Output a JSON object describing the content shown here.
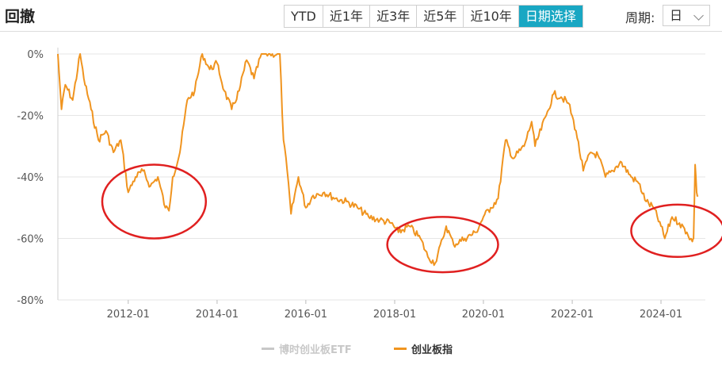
{
  "header": {
    "title": "回撤"
  },
  "range_buttons": [
    {
      "label": "YTD",
      "active": false
    },
    {
      "label": "近1年",
      "active": false
    },
    {
      "label": "近3年",
      "active": false
    },
    {
      "label": "近5年",
      "active": false
    },
    {
      "label": "近10年",
      "active": false
    },
    {
      "label": "日期选择",
      "active": true
    }
  ],
  "period": {
    "label": "周期:",
    "value": "日"
  },
  "colors": {
    "accent": "#19a7c3",
    "series_main": "#f0941f",
    "series_etf": "#c8c8c8",
    "highlight_circle": "#e02020"
  },
  "chart_data": {
    "type": "line",
    "xlabel": "",
    "ylabel": "",
    "x_ticks": [
      "2012-01",
      "2014-01",
      "2016-01",
      "2018-01",
      "2020-01",
      "2022-01",
      "2024-01"
    ],
    "y_ticks": [
      "0%",
      "-20%",
      "-40%",
      "-60%",
      "-80%"
    ],
    "ylim": [
      -80,
      0
    ],
    "xlim": [
      "2010-06-01",
      "2024-12-31"
    ],
    "grid": true,
    "legend_position": "bottom",
    "series": [
      {
        "name": "创业板指",
        "color": "#f0941f",
        "points": [
          [
            "2010-06-01",
            0
          ],
          [
            "2010-07-01",
            -18
          ],
          [
            "2010-08-01",
            -10
          ],
          [
            "2010-10-01",
            -15
          ],
          [
            "2010-12-01",
            0
          ],
          [
            "2011-01-01",
            -8
          ],
          [
            "2011-03-01",
            -18
          ],
          [
            "2011-05-01",
            -28
          ],
          [
            "2011-07-01",
            -25
          ],
          [
            "2011-09-01",
            -32
          ],
          [
            "2011-11-01",
            -28
          ],
          [
            "2012-01-01",
            -45
          ],
          [
            "2012-03-01",
            -40
          ],
          [
            "2012-05-01",
            -38
          ],
          [
            "2012-07-01",
            -43
          ],
          [
            "2012-09-01",
            -40
          ],
          [
            "2012-11-01",
            -50
          ],
          [
            "2012-12-01",
            -51
          ],
          [
            "2013-01-01",
            -40
          ],
          [
            "2013-03-01",
            -32
          ],
          [
            "2013-05-01",
            -15
          ],
          [
            "2013-07-01",
            -12
          ],
          [
            "2013-09-01",
            0
          ],
          [
            "2013-11-01",
            -5
          ],
          [
            "2014-01-01",
            -3
          ],
          [
            "2014-03-01",
            -12
          ],
          [
            "2014-05-01",
            -18
          ],
          [
            "2014-07-01",
            -12
          ],
          [
            "2014-09-01",
            -2
          ],
          [
            "2014-11-01",
            -8
          ],
          [
            "2015-01-01",
            0
          ],
          [
            "2015-03-01",
            0
          ],
          [
            "2015-06-01",
            0
          ],
          [
            "2015-07-01",
            -28
          ],
          [
            "2015-08-01",
            -38
          ],
          [
            "2015-09-01",
            -52
          ],
          [
            "2015-11-01",
            -40
          ],
          [
            "2016-01-01",
            -50
          ],
          [
            "2016-03-01",
            -46
          ],
          [
            "2016-06-01",
            -45
          ],
          [
            "2016-09-01",
            -47
          ],
          [
            "2016-12-01",
            -48
          ],
          [
            "2017-03-01",
            -50
          ],
          [
            "2017-06-01",
            -53
          ],
          [
            "2017-09-01",
            -54
          ],
          [
            "2017-12-01",
            -55
          ],
          [
            "2018-02-01",
            -58
          ],
          [
            "2018-05-01",
            -56
          ],
          [
            "2018-08-01",
            -60
          ],
          [
            "2018-10-01",
            -66
          ],
          [
            "2018-12-01",
            -68
          ],
          [
            "2019-02-01",
            -60
          ],
          [
            "2019-03-01",
            -56
          ],
          [
            "2019-05-01",
            -62
          ],
          [
            "2019-08-01",
            -60
          ],
          [
            "2019-11-01",
            -58
          ],
          [
            "2020-01-01",
            -53
          ],
          [
            "2020-03-01",
            -50
          ],
          [
            "2020-05-01",
            -47
          ],
          [
            "2020-07-01",
            -28
          ],
          [
            "2020-09-01",
            -34
          ],
          [
            "2020-12-01",
            -30
          ],
          [
            "2021-02-01",
            -22
          ],
          [
            "2021-03-01",
            -30
          ],
          [
            "2021-06-01",
            -20
          ],
          [
            "2021-08-01",
            -13
          ],
          [
            "2021-10-01",
            -14
          ],
          [
            "2021-12-01",
            -16
          ],
          [
            "2022-02-01",
            -25
          ],
          [
            "2022-04-01",
            -38
          ],
          [
            "2022-06-01",
            -32
          ],
          [
            "2022-08-01",
            -33
          ],
          [
            "2022-10-01",
            -40
          ],
          [
            "2022-12-01",
            -38
          ],
          [
            "2023-02-01",
            -35
          ],
          [
            "2023-05-01",
            -40
          ],
          [
            "2023-07-01",
            -42
          ],
          [
            "2023-09-01",
            -48
          ],
          [
            "2023-11-01",
            -50
          ],
          [
            "2024-01-01",
            -56
          ],
          [
            "2024-02-01",
            -60
          ],
          [
            "2024-04-01",
            -53
          ],
          [
            "2024-06-01",
            -55
          ],
          [
            "2024-08-01",
            -58
          ],
          [
            "2024-09-15",
            -61
          ],
          [
            "2024-09-25",
            -60
          ],
          [
            "2024-10-08",
            -36
          ],
          [
            "2024-10-20",
            -45
          ],
          [
            "2024-11-01",
            -46
          ]
        ]
      },
      {
        "name": "博时创业板ETF",
        "color": "#c8c8c8",
        "points": []
      }
    ],
    "annotations": [
      {
        "shape": "ellipse",
        "x_range": [
          "2011-06-01",
          "2013-10-01"
        ],
        "y_range": [
          -36,
          -60
        ]
      },
      {
        "shape": "ellipse",
        "x_range": [
          "2017-11-01",
          "2020-05-01"
        ],
        "y_range": [
          -53,
          -71
        ]
      },
      {
        "shape": "ellipse",
        "x_range": [
          "2023-05-01",
          "2025-06-01"
        ],
        "y_range": [
          -49,
          -66
        ]
      }
    ]
  }
}
